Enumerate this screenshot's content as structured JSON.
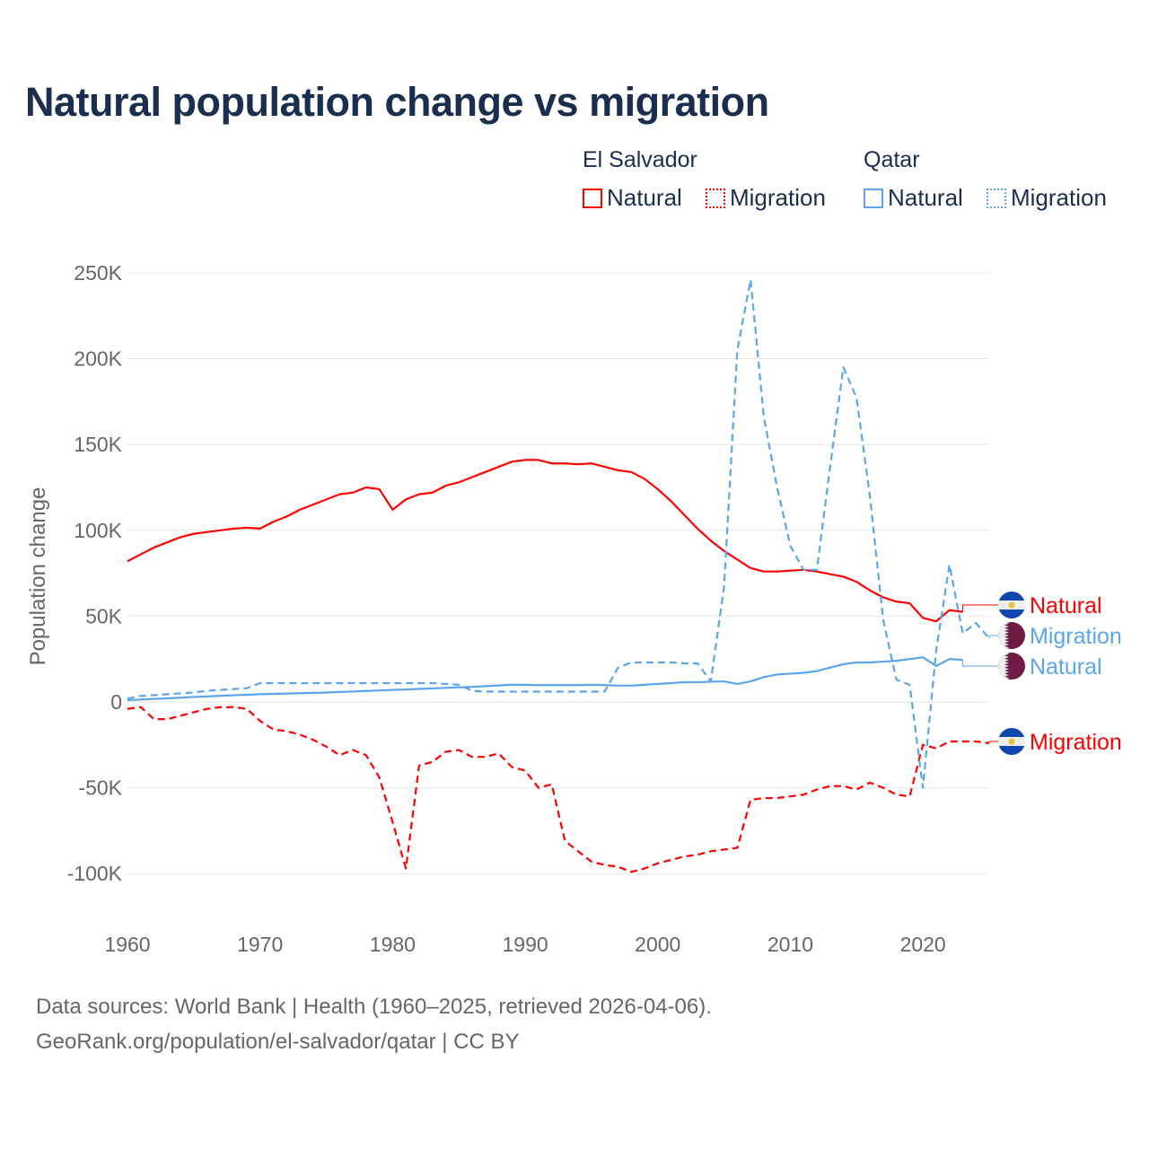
{
  "chart_data": {
    "type": "line",
    "title": "Natural population change vs migration",
    "ylabel": "Population change",
    "xlabel": "",
    "xlim": [
      1960,
      2025
    ],
    "ylim": [
      -120000,
      260000
    ],
    "x_ticks": [
      1960,
      1970,
      1980,
      1990,
      2000,
      2010,
      2020
    ],
    "x_tick_labels": [
      "1960",
      "1970",
      "1980",
      "1990",
      "2000",
      "2010",
      "2020"
    ],
    "y_ticks": [
      -100000,
      -50000,
      0,
      50000,
      100000,
      150000,
      200000,
      250000
    ],
    "y_tick_labels": [
      "-100K",
      "-50K",
      "0",
      "50K",
      "100K",
      "150K",
      "200K",
      "250K"
    ],
    "grid": true,
    "legend": {
      "placement": "top-right",
      "groups": [
        {
          "name": "El Salvador",
          "items": [
            "Natural",
            "Migration"
          ]
        },
        {
          "name": "Qatar",
          "items": [
            "Natural",
            "Migration"
          ]
        }
      ]
    },
    "series": [
      {
        "name": "El Salvador Natural",
        "country": "El Salvador",
        "kind": "Natural",
        "label": "Natural",
        "color": "#ff0000",
        "dash": false,
        "start": 1960,
        "values": [
          82000,
          86000,
          90000,
          93000,
          96000,
          98000,
          99000,
          100000,
          101000,
          101500,
          101000,
          105000,
          108000,
          112000,
          115000,
          118000,
          121000,
          122000,
          125000,
          124000,
          112000,
          118000,
          121000,
          122000,
          126000,
          128000,
          131000,
          134000,
          137000,
          140000,
          141000,
          141000,
          139000,
          139000,
          138500,
          139000,
          137000,
          135000,
          134000,
          130000,
          124000,
          117000,
          109000,
          101000,
          94000,
          88000,
          83000,
          78000,
          76000,
          76000,
          76500,
          77000,
          76000,
          74500,
          73000,
          70000,
          65000,
          61000,
          58500,
          57500,
          49000,
          47000,
          53500,
          52500
        ]
      },
      {
        "name": "El Salvador Migration",
        "country": "El Salvador",
        "kind": "Migration",
        "label": "Migration",
        "color": "#ff0000",
        "dash": true,
        "start": 1960,
        "values": [
          -4000,
          -3000,
          -10000,
          -10000,
          -8000,
          -6000,
          -4000,
          -3000,
          -3000,
          -4000,
          -11000,
          -16000,
          -17000,
          -19000,
          -22000,
          -26000,
          -31000,
          -28000,
          -31000,
          -44000,
          -70000,
          -97000,
          -37000,
          -35000,
          -29000,
          -28000,
          -32000,
          -32000,
          -30000,
          -38000,
          -40000,
          -50000,
          -48000,
          -81000,
          -87000,
          -93000,
          -95000,
          -96000,
          -99000,
          -97000,
          -94000,
          -92000,
          -90000,
          -89000,
          -87000,
          -86000,
          -85000,
          -57000,
          -56000,
          -56000,
          -55000,
          -54000,
          -51000,
          -49000,
          -49000,
          -51000,
          -47000,
          -50000,
          -54000,
          -55000,
          -25000,
          -27000,
          -23000,
          -23000,
          -23000,
          -24000
        ]
      },
      {
        "name": "Qatar Migration",
        "country": "Qatar",
        "kind": "Migration",
        "label": "Migration",
        "color": "#5aa5ec",
        "dash": true,
        "start": 1960,
        "values": [
          2000,
          3500,
          4000,
          4500,
          5000,
          5500,
          6500,
          7000,
          7500,
          8000,
          11000,
          11000,
          11000,
          11000,
          11000,
          11000,
          11000,
          11000,
          11000,
          11000,
          11000,
          11000,
          11000,
          11000,
          10500,
          10000,
          6500,
          6000,
          6000,
          6000,
          6000,
          6000,
          6000,
          6000,
          6000,
          6000,
          6000,
          20000,
          23000,
          23000,
          23000,
          23000,
          22500,
          22500,
          12000,
          67000,
          205000,
          246000,
          166000,
          125000,
          91000,
          77000,
          77000,
          137000,
          195000,
          177000,
          120000,
          48000,
          13000,
          10000,
          -50000,
          30000,
          80000,
          40000,
          46000,
          37000
        ]
      },
      {
        "name": "Qatar Natural",
        "country": "Qatar",
        "kind": "Natural",
        "label": "Natural",
        "color": "#5aa5ec",
        "dash": false,
        "start": 1960,
        "values": [
          1000,
          1400,
          1800,
          2100,
          2500,
          2900,
          3200,
          3600,
          3900,
          4200,
          4500,
          4700,
          4900,
          5100,
          5300,
          5500,
          5800,
          6100,
          6400,
          6700,
          7000,
          7300,
          7600,
          7900,
          8200,
          8500,
          8800,
          9200,
          9600,
          10000,
          10000,
          9800,
          9800,
          9800,
          9800,
          10000,
          9800,
          9500,
          9500,
          10000,
          10500,
          11000,
          11500,
          11500,
          11800,
          12000,
          10500,
          12000,
          14500,
          16000,
          16500,
          17000,
          18000,
          20000,
          22000,
          23000,
          23000,
          23500,
          24000,
          25000,
          26000,
          21000,
          25000,
          24500
        ]
      }
    ]
  },
  "legend_headers": {
    "el_salvador": "El Salvador",
    "qatar": "Qatar"
  },
  "legend_labels": {
    "es_natural": "Natural",
    "es_migration": "Migration",
    "qa_natural": "Natural",
    "qa_migration": "Migration"
  },
  "end_labels": {
    "es_natural": "Natural",
    "qa_migration": "Migration",
    "qa_natural": "Natural",
    "es_migration": "Migration"
  },
  "footer": {
    "line1": "Data sources: World Bank | Health (1960–2025, retrieved 2026-04-06).",
    "line2": "GeoRank.org/population/el-salvador/qatar | CC BY"
  },
  "colors": {
    "el_salvador": "#ff0000",
    "qatar": "#5aa5ec",
    "title": "#1a2e4f",
    "qatar_flag": "#6e1b45",
    "es_flag": "#0f47af"
  }
}
